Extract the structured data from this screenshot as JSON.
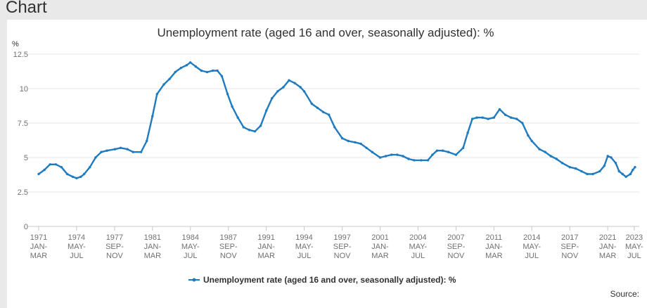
{
  "header": {
    "title": "Chart"
  },
  "footer": {
    "source_label": "Source:"
  },
  "colors": {
    "series": "#1f7bbf",
    "grid": "#e6e6e6",
    "axis": "#c8c8c8",
    "header_bg": "#e9e9e9"
  },
  "chart_data": {
    "type": "line",
    "title": "Unemployment rate (aged 16 and over, seasonally adjusted): %",
    "ylabel": "%",
    "xlabel": "",
    "ylim": [
      0,
      12.5
    ],
    "yticks": [
      "0",
      "2.5",
      "5",
      "7.5",
      "10",
      "12.5"
    ],
    "ytick_values": [
      0,
      2.5,
      5,
      7.5,
      10,
      12.5
    ],
    "xlim": [
      1971.0,
      2023.4
    ],
    "xticks": [
      {
        "pos": 1971.0,
        "lines": [
          "1971",
          "JAN-",
          "MAR"
        ]
      },
      {
        "pos": 1974.33,
        "lines": [
          "1974",
          "MAY-",
          "JUL"
        ]
      },
      {
        "pos": 1977.67,
        "lines": [
          "1977",
          "SEP-",
          "NOV"
        ]
      },
      {
        "pos": 1981.0,
        "lines": [
          "1981",
          "JAN-",
          "MAR"
        ]
      },
      {
        "pos": 1984.33,
        "lines": [
          "1984",
          "MAY-",
          "JUL"
        ]
      },
      {
        "pos": 1987.67,
        "lines": [
          "1987",
          "SEP-",
          "NOV"
        ]
      },
      {
        "pos": 1991.0,
        "lines": [
          "1991",
          "JAN-",
          "MAR"
        ]
      },
      {
        "pos": 1994.33,
        "lines": [
          "1994",
          "MAY-",
          "JUL"
        ]
      },
      {
        "pos": 1997.67,
        "lines": [
          "1997",
          "SEP-",
          "NOV"
        ]
      },
      {
        "pos": 2001.0,
        "lines": [
          "2001",
          "JAN-",
          "MAR"
        ]
      },
      {
        "pos": 2004.33,
        "lines": [
          "2004",
          "MAY-",
          "JUL"
        ]
      },
      {
        "pos": 2007.67,
        "lines": [
          "2007",
          "SEP-",
          "NOV"
        ]
      },
      {
        "pos": 2011.0,
        "lines": [
          "2011",
          "JAN-",
          "MAR"
        ]
      },
      {
        "pos": 2014.33,
        "lines": [
          "2014",
          "MAY-",
          "JUL"
        ]
      },
      {
        "pos": 2017.67,
        "lines": [
          "2017",
          "SEP-",
          "NOV"
        ]
      },
      {
        "pos": 2021.0,
        "lines": [
          "2021",
          "JAN-",
          "MAR"
        ]
      },
      {
        "pos": 2023.33,
        "lines": [
          "2023",
          "MAY-",
          "JUL"
        ]
      }
    ],
    "series": [
      {
        "name": "Unemployment rate (aged 16 and over, seasonally adjusted): %",
        "points": [
          [
            1971.0,
            3.8
          ],
          [
            1971.5,
            4.1
          ],
          [
            1972.0,
            4.5
          ],
          [
            1972.5,
            4.5
          ],
          [
            1973.0,
            4.3
          ],
          [
            1973.5,
            3.8
          ],
          [
            1974.0,
            3.6
          ],
          [
            1974.33,
            3.5
          ],
          [
            1974.7,
            3.6
          ],
          [
            1975.0,
            3.8
          ],
          [
            1975.5,
            4.3
          ],
          [
            1976.0,
            5.0
          ],
          [
            1976.5,
            5.4
          ],
          [
            1977.0,
            5.5
          ],
          [
            1977.7,
            5.6
          ],
          [
            1978.2,
            5.7
          ],
          [
            1978.8,
            5.6
          ],
          [
            1979.3,
            5.4
          ],
          [
            1980.0,
            5.4
          ],
          [
            1980.5,
            6.2
          ],
          [
            1981.0,
            8.0
          ],
          [
            1981.4,
            9.6
          ],
          [
            1982.0,
            10.3
          ],
          [
            1982.5,
            10.7
          ],
          [
            1983.0,
            11.2
          ],
          [
            1983.5,
            11.5
          ],
          [
            1984.0,
            11.7
          ],
          [
            1984.33,
            11.9
          ],
          [
            1984.8,
            11.6
          ],
          [
            1985.3,
            11.3
          ],
          [
            1985.8,
            11.2
          ],
          [
            1986.3,
            11.3
          ],
          [
            1986.7,
            11.3
          ],
          [
            1987.1,
            10.9
          ],
          [
            1987.6,
            9.6
          ],
          [
            1988.0,
            8.7
          ],
          [
            1988.5,
            7.9
          ],
          [
            1989.0,
            7.2
          ],
          [
            1989.5,
            7.0
          ],
          [
            1990.0,
            6.9
          ],
          [
            1990.5,
            7.3
          ],
          [
            1991.0,
            8.4
          ],
          [
            1991.5,
            9.3
          ],
          [
            1992.0,
            9.8
          ],
          [
            1992.5,
            10.1
          ],
          [
            1993.0,
            10.6
          ],
          [
            1993.5,
            10.4
          ],
          [
            1994.0,
            10.1
          ],
          [
            1994.33,
            9.8
          ],
          [
            1995.0,
            8.9
          ],
          [
            1995.5,
            8.6
          ],
          [
            1996.0,
            8.3
          ],
          [
            1996.5,
            8.1
          ],
          [
            1997.0,
            7.2
          ],
          [
            1997.67,
            6.4
          ],
          [
            1998.2,
            6.2
          ],
          [
            1998.8,
            6.1
          ],
          [
            1999.3,
            6.0
          ],
          [
            1999.8,
            5.7
          ],
          [
            2000.3,
            5.4
          ],
          [
            2001.0,
            5.0
          ],
          [
            2001.5,
            5.1
          ],
          [
            2002.0,
            5.2
          ],
          [
            2002.5,
            5.2
          ],
          [
            2003.0,
            5.1
          ],
          [
            2003.5,
            4.9
          ],
          [
            2004.0,
            4.8
          ],
          [
            2004.6,
            4.8
          ],
          [
            2005.2,
            4.8
          ],
          [
            2005.6,
            5.2
          ],
          [
            2006.0,
            5.5
          ],
          [
            2006.5,
            5.5
          ],
          [
            2007.0,
            5.4
          ],
          [
            2007.67,
            5.2
          ],
          [
            2008.3,
            5.7
          ],
          [
            2008.7,
            6.8
          ],
          [
            2009.1,
            7.8
          ],
          [
            2009.5,
            7.9
          ],
          [
            2010.0,
            7.9
          ],
          [
            2010.5,
            7.8
          ],
          [
            2011.0,
            7.9
          ],
          [
            2011.5,
            8.5
          ],
          [
            2012.0,
            8.1
          ],
          [
            2012.5,
            7.9
          ],
          [
            2013.0,
            7.8
          ],
          [
            2013.5,
            7.5
          ],
          [
            2014.0,
            6.6
          ],
          [
            2014.33,
            6.2
          ],
          [
            2015.0,
            5.6
          ],
          [
            2015.5,
            5.4
          ],
          [
            2016.0,
            5.1
          ],
          [
            2016.5,
            4.9
          ],
          [
            2017.0,
            4.6
          ],
          [
            2017.67,
            4.3
          ],
          [
            2018.2,
            4.2
          ],
          [
            2018.7,
            4.0
          ],
          [
            2019.2,
            3.8
          ],
          [
            2019.7,
            3.8
          ],
          [
            2020.3,
            4.0
          ],
          [
            2020.7,
            4.4
          ],
          [
            2021.0,
            5.1
          ],
          [
            2021.3,
            5.0
          ],
          [
            2021.7,
            4.6
          ],
          [
            2022.0,
            4.0
          ],
          [
            2022.3,
            3.8
          ],
          [
            2022.6,
            3.6
          ],
          [
            2023.0,
            3.8
          ],
          [
            2023.2,
            4.1
          ],
          [
            2023.4,
            4.3
          ]
        ]
      }
    ]
  }
}
